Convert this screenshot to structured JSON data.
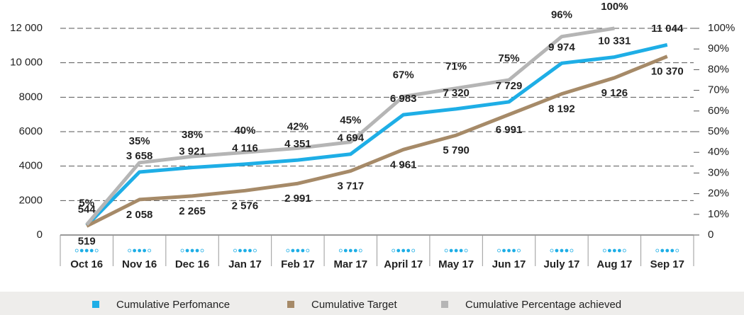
{
  "chart_data": {
    "type": "line",
    "categories": [
      "Oct 16",
      "Nov 16",
      "Dec 16",
      "Jan 17",
      "Feb 17",
      "Mar 17",
      "April 17",
      "May 17",
      "Jun 17",
      "July 17",
      "Aug 17",
      "Sep 17"
    ],
    "series": [
      {
        "name": "Cumulative Perfomance",
        "color": "#1eaee6",
        "values": [
          544,
          3658,
          3921,
          4116,
          4351,
          4694,
          6983,
          7320,
          7729,
          9974,
          10331,
          11044
        ],
        "value_labels": [
          "544",
          "3 658",
          "3 921",
          "4 116",
          "4 351",
          "4 694",
          "6 983",
          "7 320",
          "7 729",
          "9 974",
          "10 331",
          "11 044"
        ]
      },
      {
        "name": "Cumulative Target",
        "color": "#a68a68",
        "values": [
          519,
          2058,
          2265,
          2576,
          2991,
          3717,
          4961,
          5790,
          6991,
          8192,
          9126,
          10370
        ],
        "value_labels": [
          "519",
          "2 058",
          "2 265",
          "2 576",
          "2 991",
          "3 717",
          "4 961",
          "5 790",
          "6 991",
          "8 192",
          "9 126",
          "10 370"
        ]
      },
      {
        "name": "Cumulative Percentage achieved",
        "color": "#b5b5b5",
        "axis": "y2",
        "values": [
          5,
          35,
          38,
          40,
          42,
          45,
          67,
          71,
          75,
          96,
          100,
          null
        ],
        "value_labels": [
          "5%",
          "35%",
          "38%",
          "40%",
          "42%",
          "45%",
          "67%",
          "71%",
          "75%",
          "96%",
          "100%",
          null
        ]
      }
    ],
    "ylim": [
      0,
      12000
    ],
    "yticks": [
      0,
      2000,
      4000,
      6000,
      8000,
      {
        "value": 10000,
        "label": "10 000"
      },
      {
        "value": 12000,
        "label": "12 000"
      }
    ],
    "y2lim": [
      0,
      100
    ],
    "y2ticks": [
      0,
      {
        "value": 10,
        "label": "10%"
      },
      {
        "value": 20,
        "label": "20%"
      },
      {
        "value": 30,
        "label": "30%"
      },
      {
        "value": 40,
        "label": "40%"
      },
      {
        "value": 50,
        "label": "50%"
      },
      {
        "value": 60,
        "label": "60%"
      },
      {
        "value": 70,
        "label": "70%"
      },
      {
        "value": 80,
        "label": "80%"
      },
      {
        "value": 90,
        "label": "90%"
      },
      {
        "value": 100,
        "label": "100%"
      }
    ],
    "grid": true,
    "legend": "bottom"
  }
}
